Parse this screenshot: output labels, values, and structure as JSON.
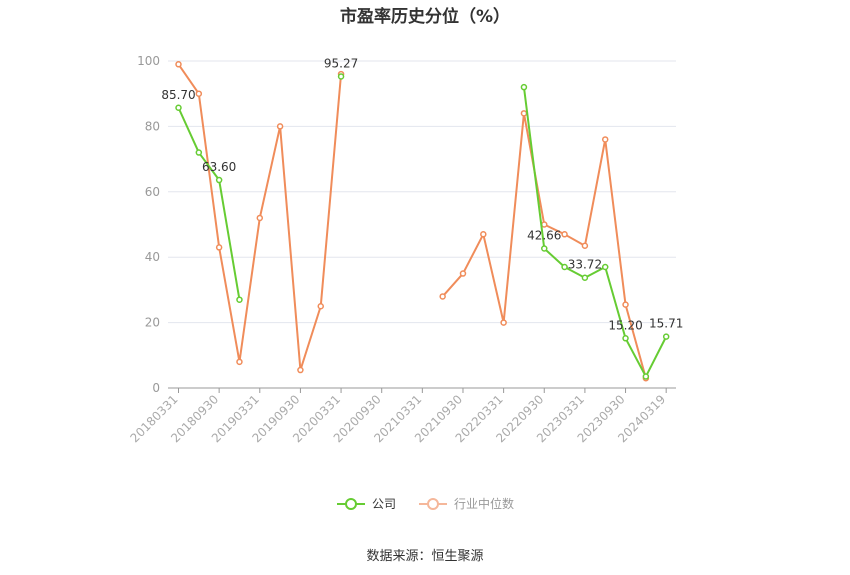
{
  "chart_data": {
    "type": "line",
    "title": "市盈率历史分位（%）",
    "ylim": [
      0,
      100
    ],
    "yticks": [
      0,
      20,
      40,
      60,
      80,
      100
    ],
    "grid": true,
    "legend_position": "bottom",
    "x": [
      "20180331",
      "20180630",
      "20180930",
      "20181231",
      "20190331",
      "20190630",
      "20190930",
      "20191231",
      "20200331",
      "20200630",
      "20200930",
      "20201231",
      "20210331",
      "20210630",
      "20210930",
      "20211231",
      "20220331",
      "20220630",
      "20220930",
      "20221231",
      "20230331",
      "20230630",
      "20230930",
      "20231231",
      "20240319"
    ],
    "xtick_labels": [
      "20180331",
      "20180930",
      "20190331",
      "20190930",
      "20200331",
      "20200930",
      "20210331",
      "20210930",
      "20220331",
      "20220930",
      "20230331",
      "20230930",
      "20240319"
    ],
    "series": [
      {
        "name": "公司",
        "color": "#66cc33",
        "values": [
          85.7,
          72,
          63.6,
          27,
          null,
          null,
          null,
          null,
          95.27,
          null,
          null,
          null,
          null,
          null,
          null,
          null,
          null,
          92,
          42.66,
          37,
          33.72,
          37,
          15.2,
          3.5,
          15.71
        ],
        "data_labels": [
          {
            "index": 0,
            "text": "85.70"
          },
          {
            "index": 2,
            "text": "63.60"
          },
          {
            "index": 8,
            "text": "95.27"
          },
          {
            "index": 18,
            "text": "42.66"
          },
          {
            "index": 20,
            "text": "33.72"
          },
          {
            "index": 22,
            "text": "15.20"
          },
          {
            "index": 24,
            "text": "15.71"
          }
        ]
      },
      {
        "name": "行业中位数",
        "color": "#f08c5a",
        "values": [
          99,
          90,
          43,
          8,
          52,
          80,
          5.5,
          25,
          96,
          null,
          null,
          null,
          null,
          28,
          35,
          47,
          20,
          84,
          50,
          47,
          43.5,
          76,
          25.5,
          3,
          null
        ]
      }
    ]
  },
  "legend": {
    "company_label": "公司",
    "industry_label": "行业中位数"
  },
  "source_text": "数据来源：恒生聚源"
}
